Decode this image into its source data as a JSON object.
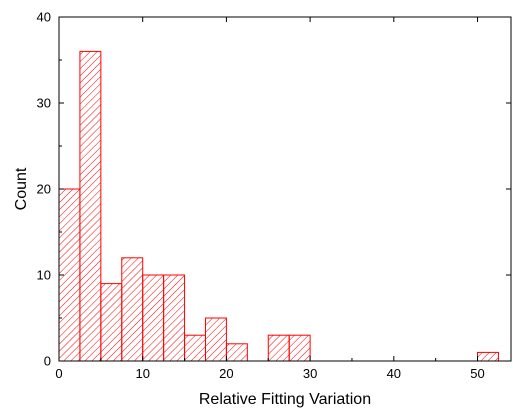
{
  "chart_data": {
    "type": "bar",
    "subtype": "histogram",
    "xlabel": "Relative Fitting Variation",
    "ylabel": "Count",
    "xlim": [
      0,
      54
    ],
    "ylim": [
      0,
      40
    ],
    "xticks": [
      0,
      10,
      20,
      30,
      40,
      50
    ],
    "yticks": [
      0,
      10,
      20,
      30,
      40
    ],
    "grid": false,
    "bar_style": {
      "fill": "hatched",
      "color": "#ff0000"
    },
    "bins": [
      {
        "x0": 0,
        "x1": 2.5,
        "count": 20
      },
      {
        "x0": 2.5,
        "x1": 5,
        "count": 36
      },
      {
        "x0": 5,
        "x1": 7.5,
        "count": 9
      },
      {
        "x0": 7.5,
        "x1": 10,
        "count": 12
      },
      {
        "x0": 10,
        "x1": 12.5,
        "count": 10
      },
      {
        "x0": 12.5,
        "x1": 15,
        "count": 10
      },
      {
        "x0": 15,
        "x1": 17.5,
        "count": 3
      },
      {
        "x0": 17.5,
        "x1": 20,
        "count": 5
      },
      {
        "x0": 20,
        "x1": 22.5,
        "count": 2
      },
      {
        "x0": 25,
        "x1": 27.5,
        "count": 3
      },
      {
        "x0": 27.5,
        "x1": 30,
        "count": 3
      },
      {
        "x0": 50,
        "x1": 52.5,
        "count": 1
      }
    ]
  }
}
